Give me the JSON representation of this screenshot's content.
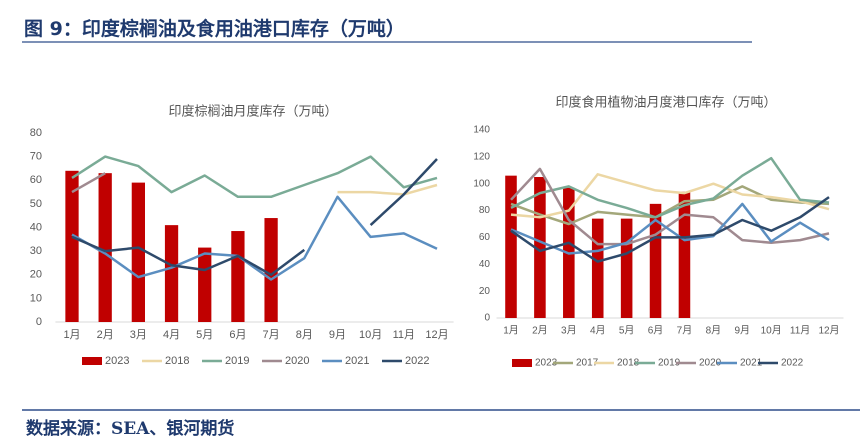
{
  "header": {
    "title": "图 9：印度棕榈油及食用油港口库存（万吨）"
  },
  "footer": {
    "source": "数据来源：SEA、银河期货"
  },
  "chart_data": [
    {
      "type": "combo",
      "title": "印度棕榈油月度库存（万吨）",
      "categories": [
        "1月",
        "2月",
        "3月",
        "4月",
        "5月",
        "6月",
        "7月",
        "8月",
        "9月",
        "10月",
        "11月",
        "12月"
      ],
      "ylim": [
        0,
        80
      ],
      "yticks": [
        0,
        10,
        20,
        30,
        40,
        50,
        60,
        70,
        80
      ],
      "grid": false,
      "legend": "bottom",
      "series": [
        {
          "name": "2023",
          "type": "bar",
          "color": "#c00000",
          "values": [
            64,
            63,
            59,
            41,
            31.5,
            38.5,
            44,
            null,
            null,
            null,
            null,
            null
          ]
        },
        {
          "name": "2018",
          "type": "line",
          "color": "#ecd7a4",
          "values": [
            null,
            null,
            null,
            null,
            null,
            null,
            null,
            null,
            55,
            55,
            54,
            58
          ]
        },
        {
          "name": "2019",
          "type": "line",
          "color": "#7aab96",
          "values": [
            61,
            70,
            66,
            55,
            62,
            53,
            53,
            58,
            63,
            70,
            57,
            61
          ]
        },
        {
          "name": "2020",
          "type": "line",
          "color": "#a08a90",
          "values": [
            55,
            63,
            null,
            null,
            null,
            null,
            null,
            null,
            null,
            null,
            null,
            null
          ]
        },
        {
          "name": "2021",
          "type": "line",
          "color": "#5b8ec0",
          "values": [
            37,
            29,
            19,
            23,
            29,
            28,
            18,
            27,
            53,
            36,
            37.5,
            31
          ]
        },
        {
          "name": "2022",
          "type": "line",
          "color": "#2e4a6b",
          "values": [
            36,
            30,
            31.5,
            24,
            22,
            28,
            20,
            30.5,
            null,
            41,
            54,
            69
          ]
        }
      ]
    },
    {
      "type": "combo",
      "title": "印度食用植物油月度港口库存（万吨）",
      "categories": [
        "1月",
        "2月",
        "3月",
        "4月",
        "5月",
        "6月",
        "7月",
        "8月",
        "9月",
        "10月",
        "11月",
        "12月"
      ],
      "ylim": [
        0,
        140
      ],
      "yticks": [
        0,
        20,
        40,
        60,
        80,
        100,
        120,
        140
      ],
      "grid": false,
      "legend": "bottom",
      "series": [
        {
          "name": "2023",
          "type": "bar",
          "color": "#c00000",
          "values": [
            106,
            105,
            97,
            74,
            74,
            85,
            94,
            null,
            null,
            null,
            null,
            null
          ]
        },
        {
          "name": "2017",
          "type": "line",
          "color": "#a3a77a",
          "values": [
            85,
            77,
            70,
            79,
            77,
            75,
            87,
            88,
            98,
            88,
            86,
            85
          ]
        },
        {
          "name": "2018",
          "type": "line",
          "color": "#ecd7a4",
          "values": [
            77,
            75,
            80,
            107,
            101,
            95,
            93,
            100,
            92,
            90,
            87,
            81
          ]
        },
        {
          "name": "2019",
          "type": "line",
          "color": "#7aab96",
          "values": [
            82,
            93,
            98,
            88,
            82,
            75,
            84,
            89,
            106,
            119,
            88,
            86
          ]
        },
        {
          "name": "2020",
          "type": "line",
          "color": "#a08a90",
          "values": [
            88,
            111,
            73,
            55,
            55,
            62,
            77,
            75,
            58,
            56,
            58,
            63
          ]
        },
        {
          "name": "2021",
          "type": "line",
          "color": "#5b8ec0",
          "values": [
            66,
            57,
            48,
            50,
            56,
            73,
            58,
            61,
            85,
            57,
            71,
            58
          ]
        },
        {
          "name": "2022",
          "type": "line",
          "color": "#2e4a6b",
          "values": [
            65,
            50,
            56,
            42,
            48,
            60,
            60,
            62,
            73,
            65,
            75,
            90
          ]
        }
      ]
    }
  ]
}
